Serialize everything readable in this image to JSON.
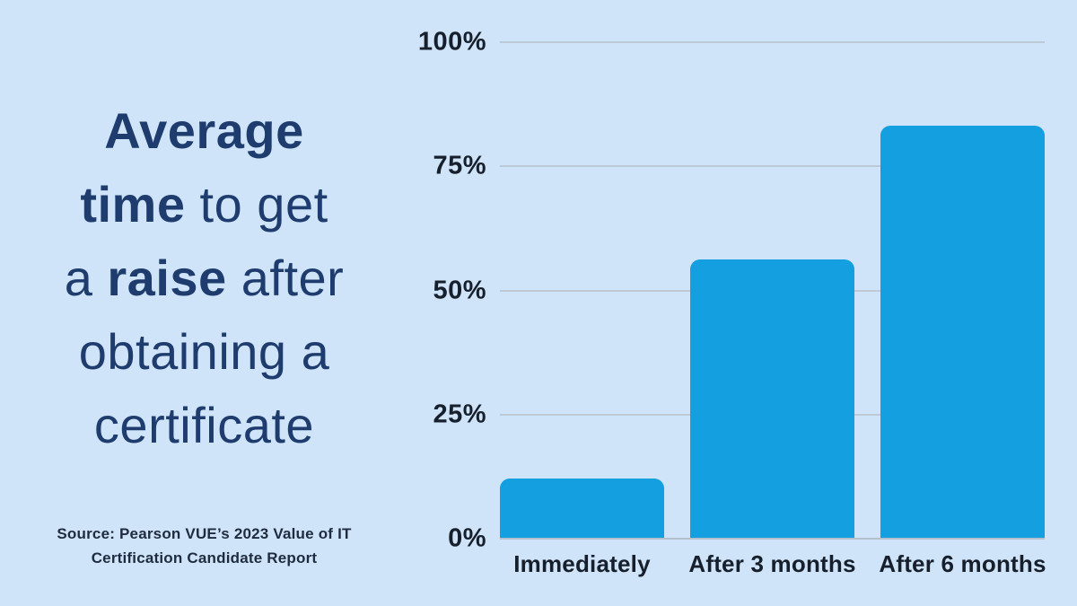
{
  "title": {
    "full_text": "Average time to get a raise after obtaining a certificate",
    "lines": [
      {
        "segments": [
          {
            "text": "Average",
            "bold": true
          }
        ]
      },
      {
        "segments": [
          {
            "text": "time",
            "bold": true
          },
          {
            "text": " to get",
            "bold": false
          }
        ]
      },
      {
        "segments": [
          {
            "text": "a ",
            "bold": false
          },
          {
            "text": "raise",
            "bold": true
          },
          {
            "text": " after",
            "bold": false
          }
        ]
      },
      {
        "segments": [
          {
            "text": "obtaining a",
            "bold": false
          }
        ]
      },
      {
        "segments": [
          {
            "text": "certificate",
            "bold": false
          }
        ]
      }
    ]
  },
  "source": {
    "line1": "Source: Pearson VUE’s 2023 Value of IT",
    "line2": "Certification Candidate Report"
  },
  "chart_data": {
    "type": "bar",
    "title": "Average time to get a raise after obtaining a certificate",
    "categories": [
      "Immediately",
      "After 3 months",
      "After 6 months"
    ],
    "values": [
      12,
      56,
      83
    ],
    "value_unit": "%",
    "ylim": [
      0,
      100
    ],
    "yticks": [
      0,
      25,
      50,
      75,
      100
    ],
    "ytick_labels": [
      "0%",
      "25%",
      "50%",
      "75%",
      "100%"
    ],
    "xlabel": "",
    "ylabel": "",
    "grid": true,
    "legend": "none",
    "source": "Source: Pearson VUE’s 2023 Value of IT Certification Candidate Report"
  },
  "colors": {
    "background": "#cfe4f8",
    "bar": "#149fe0",
    "title_text": "#1e3c6e",
    "axis_text": "#171f2c",
    "source_text": "#1f2b3e",
    "gridline": "#bdc9d4",
    "baseline": "#b4c0ca"
  }
}
